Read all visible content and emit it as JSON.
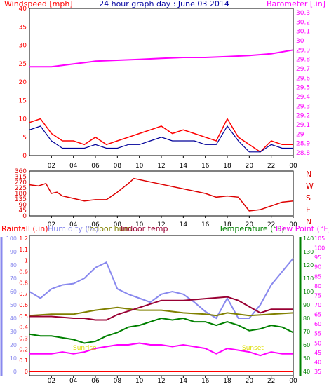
{
  "colors": {
    "windspeed": "#ff0000",
    "windspeed_avg": "#000099",
    "barometer": "#ff00ff",
    "direction": "#dd0000",
    "rainfall": "#ff0000",
    "humidity": "#8888ee",
    "indoor_hum": "#808000",
    "indoor_temp": "#990033",
    "temperature": "#008000",
    "dew_point": "#ff00ff",
    "frame": "#000000",
    "title": "#0000a0"
  },
  "chart_data": [
    {
      "type": "line",
      "title": "24 hour graph day : June 03 2014",
      "ylabel": "Windspeed [mph]",
      "y2label": "Barometer [.in]",
      "ylim": [
        0,
        40
      ],
      "y2lim": [
        28.8,
        30.3
      ],
      "yticks": [
        "0",
        "5",
        "10",
        "15",
        "20",
        "25",
        "30",
        "35",
        "40"
      ],
      "y2ticks": [
        "28.8",
        "28.9",
        "29",
        "29.1",
        "29.2",
        "29.3",
        "29.4",
        "29.5",
        "29.6",
        "29.7",
        "29.8",
        "29.9",
        "30",
        "30.1",
        "30.2",
        "30.3"
      ],
      "xticks": [
        "02",
        "04",
        "06",
        "08",
        "10",
        "12",
        "14",
        "16",
        "18",
        "20",
        "22",
        "00"
      ],
      "series": [
        {
          "name": "Windspeed",
          "axis": "left",
          "x": [
            0,
            1,
            2,
            3,
            4,
            5,
            6,
            7,
            8,
            9,
            10,
            11,
            12,
            13,
            14,
            15,
            16,
            17,
            18,
            19,
            20,
            21,
            22,
            23,
            24
          ],
          "y": [
            9,
            10,
            6,
            4,
            4,
            3,
            5,
            3,
            4,
            5,
            6,
            7,
            8,
            6,
            7,
            6,
            5,
            4,
            10,
            5,
            3,
            1,
            4,
            3,
            3
          ]
        },
        {
          "name": "Windspeed avg",
          "axis": "left",
          "x": [
            0,
            1,
            2,
            3,
            4,
            5,
            6,
            7,
            8,
            9,
            10,
            11,
            12,
            13,
            14,
            15,
            16,
            17,
            18,
            19,
            20,
            21,
            22,
            23,
            24
          ],
          "y": [
            7,
            8,
            4,
            2,
            2,
            2,
            3,
            2,
            2,
            3,
            3,
            4,
            5,
            4,
            4,
            4,
            3,
            3,
            8,
            4,
            1,
            1,
            3,
            2,
            2
          ]
        },
        {
          "name": "Barometer",
          "axis": "right",
          "x": [
            0,
            2,
            4,
            6,
            8,
            10,
            12,
            14,
            16,
            18,
            20,
            22,
            24
          ],
          "y": [
            29.72,
            29.72,
            29.75,
            29.78,
            29.79,
            29.8,
            29.81,
            29.82,
            29.82,
            29.83,
            29.84,
            29.86,
            29.9
          ]
        }
      ]
    },
    {
      "type": "line",
      "ylabel": "Wind direction",
      "ylim": [
        0,
        360
      ],
      "yticks": [
        "0",
        "45",
        "90",
        "135",
        "180",
        "225",
        "270",
        "315",
        "360"
      ],
      "compass": [
        "N",
        "W",
        "S",
        "E",
        "N"
      ],
      "xticks": [
        "02",
        "04",
        "06",
        "08",
        "10",
        "12",
        "14",
        "16",
        "18",
        "20",
        "22",
        "00"
      ],
      "series": [
        {
          "name": "Wind direction",
          "x": [
            0,
            0.8,
            1.5,
            2,
            2.5,
            3,
            4,
            5,
            6,
            7,
            8,
            9,
            9.5,
            16,
            17,
            18,
            19,
            20,
            21,
            22,
            23,
            24
          ],
          "y": [
            250,
            240,
            260,
            180,
            190,
            160,
            140,
            120,
            130,
            130,
            190,
            260,
            300,
            180,
            150,
            160,
            150,
            40,
            50,
            80,
            110,
            120
          ]
        }
      ]
    },
    {
      "type": "line",
      "labels_left": [
        "Rainfall (.in)",
        "Humidity (%)",
        "Indoor hum",
        "Indoor temp"
      ],
      "labels_right": [
        "Temperature (°F)",
        "Dew Point (°F)"
      ],
      "ylim_humidity": [
        0,
        100
      ],
      "ylim_rain": [
        0,
        1.2
      ],
      "ylim_temp": [
        30,
        105
      ],
      "y_humidity_ticks": [
        "0",
        "10",
        "20",
        "30",
        "40",
        "50",
        "60",
        "70",
        "80",
        "90",
        "100"
      ],
      "y_rain_ticks": [
        "0",
        "0.1",
        "0.2",
        "0.3",
        "0.4",
        "0.5",
        "0.6",
        "0.7",
        "0.8",
        "0.9",
        "1",
        "1.1",
        "1.2"
      ],
      "y_temp_right_ticks": [
        "40",
        "50",
        "60",
        "70",
        "80",
        "90",
        "100",
        "110",
        "120",
        "130",
        "140"
      ],
      "y_temp_ticks": [
        "35",
        "40",
        "45",
        "50",
        "55",
        "60",
        "65",
        "70",
        "75",
        "80",
        "85",
        "90",
        "95",
        "100",
        "105"
      ],
      "xticks": [
        "02",
        "04",
        "06",
        "08",
        "10",
        "12",
        "14",
        "16",
        "18",
        "20",
        "22",
        "00"
      ],
      "annotations": [
        "Sunrise",
        "Sunset"
      ],
      "series": [
        {
          "name": "Humidity",
          "x": [
            0,
            1,
            2,
            3,
            4,
            5,
            6,
            7,
            8,
            9,
            10,
            11,
            12,
            13,
            14,
            15,
            16,
            17,
            18,
            19,
            20,
            21,
            22,
            23,
            24
          ],
          "y": [
            60,
            55,
            62,
            65,
            66,
            70,
            78,
            82,
            62,
            58,
            55,
            52,
            58,
            60,
            58,
            52,
            45,
            40,
            55,
            40,
            40,
            50,
            65,
            75,
            85
          ]
        },
        {
          "name": "Indoor hum",
          "x": [
            0,
            2,
            4,
            6,
            8,
            10,
            12,
            14,
            16,
            17,
            18,
            20,
            22,
            24
          ],
          "y": [
            42,
            43,
            43,
            46,
            48,
            46,
            46,
            44,
            43,
            42,
            44,
            42,
            43,
            44
          ]
        },
        {
          "name": "Indoor temp",
          "x": [
            0,
            2,
            4,
            5,
            6,
            7,
            8,
            10,
            12,
            14,
            16,
            18,
            19,
            21,
            22,
            24
          ],
          "y": [
            61,
            61,
            60,
            60,
            59,
            59,
            62,
            66,
            70,
            70,
            71,
            72,
            70,
            63,
            65,
            65
          ]
        },
        {
          "name": "Temperature",
          "x": [
            0,
            1,
            2,
            3,
            4,
            5,
            6,
            7,
            8,
            9,
            10,
            11,
            12,
            13,
            14,
            15,
            16,
            17,
            18,
            19,
            20,
            21,
            22,
            23,
            24
          ],
          "y": [
            51,
            50,
            50,
            49,
            48,
            46,
            47,
            50,
            52,
            55,
            56,
            58,
            60,
            59,
            60,
            58,
            58,
            56,
            58,
            56,
            53,
            54,
            56,
            55,
            52
          ]
        },
        {
          "name": "Dew Point",
          "x": [
            0,
            1,
            2,
            3,
            4,
            5,
            6,
            7,
            8,
            9,
            10,
            11,
            12,
            13,
            14,
            15,
            16,
            17,
            18,
            19,
            20,
            21,
            22,
            23,
            24
          ],
          "y": [
            40,
            40,
            40,
            41,
            40,
            41,
            43,
            44,
            45,
            45,
            46,
            45,
            45,
            44,
            45,
            44,
            43,
            40,
            43,
            42,
            41,
            39,
            41,
            40,
            40
          ]
        },
        {
          "name": "Rainfall",
          "x": [
            0,
            24
          ],
          "y": [
            0,
            0
          ]
        }
      ]
    }
  ]
}
